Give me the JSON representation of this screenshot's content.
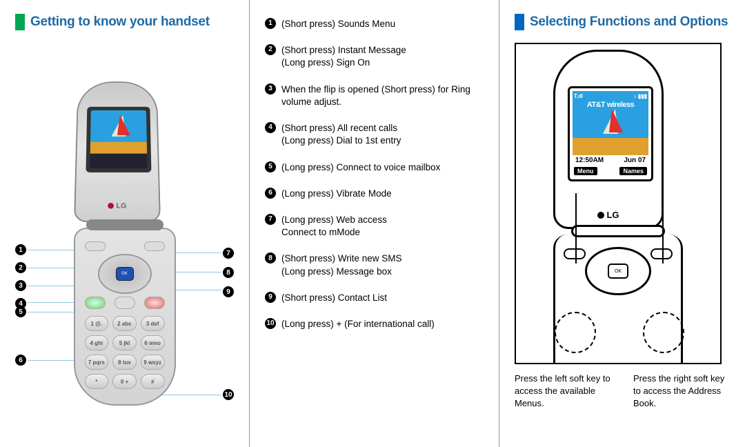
{
  "colors": {
    "accent_left": "#00a650",
    "accent_right": "#0066c2",
    "heading_left": "#1f6aa5",
    "heading_right": "#1f6aa5",
    "circle_bg": "#000000",
    "circle_fg": "#ffffff"
  },
  "left": {
    "title": "Getting to know your handset",
    "callout_numbers_left_a": [
      "1",
      "2",
      "3",
      "4"
    ],
    "callout_number_left_b": "5",
    "callout_number_left_c": "6",
    "callout_numbers_right_a": [
      "7",
      "8",
      "9"
    ],
    "callout_number_right_b": "10",
    "phone": {
      "logo": "LG",
      "ok_label": "OK",
      "keys": [
        "1 @.",
        "2 abc",
        "3 def",
        "4 ghi",
        "5 jkl",
        "6 mno",
        "7 pqrs",
        "8 tuv",
        "9 wxyz",
        "*",
        "0 +",
        "#"
      ]
    }
  },
  "mid": {
    "items": [
      {
        "n": "1",
        "text": "(Short press) Sounds Menu"
      },
      {
        "n": "2",
        "text": "(Short press) Instant Message\n(Long press) Sign On"
      },
      {
        "n": "3",
        "text": "When the flip is opened (Short press) for Ring volume adjust."
      },
      {
        "n": "4",
        "text": "(Short press) All recent calls\n(Long press) Dial to 1st entry"
      },
      {
        "n": "5",
        "text": "(Long press) Connect to voice mailbox"
      },
      {
        "n": "6",
        "text": "(Long press) Vibrate Mode"
      },
      {
        "n": "7",
        "text": "(Long press) Web access\nConnect to mMode"
      },
      {
        "n": "8",
        "text": "(Short press) Write new SMS\n(Long press) Message box"
      },
      {
        "n": "9",
        "text": "(Short press) Contact List"
      },
      {
        "n": "10",
        "text": "(Long press) + (For international call)"
      }
    ]
  },
  "right": {
    "title": "Selecting Functions and Options",
    "screen": {
      "signal_label": "T.ıll",
      "battery_label": "♪ ▮▮▮",
      "carrier": "AT&T wireless",
      "time": "12:50AM",
      "date": "Jun 07",
      "soft_left": "Menu",
      "soft_right": "Names",
      "logo": "LG",
      "ok": "OK"
    },
    "caption_left": "Press the left soft key to access the available Menus.",
    "caption_right": "Press the right soft key to access the Address Book."
  }
}
